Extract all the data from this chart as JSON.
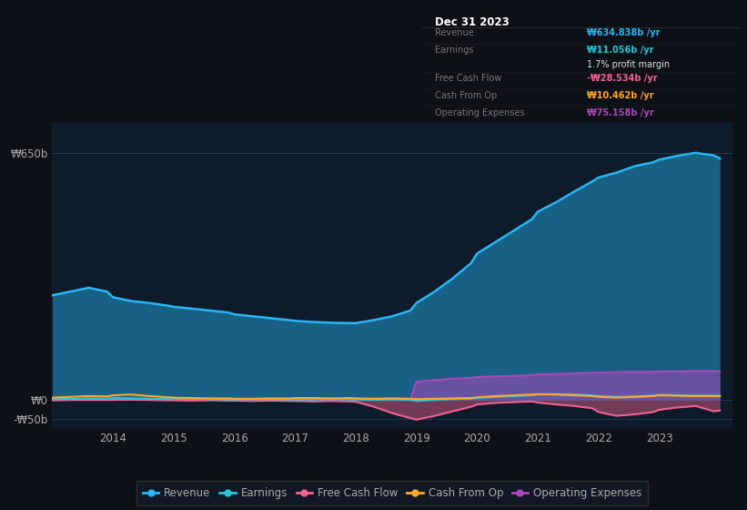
{
  "background_color": "#0d1117",
  "plot_bg_color": "#0d1b2a",
  "grid_color": "#263d5a",
  "text_color": "#aaaaaa",
  "title_color": "#ffffff",
  "years": [
    2013.0,
    2013.3,
    2013.6,
    2013.9,
    2014.0,
    2014.3,
    2014.6,
    2014.9,
    2015.0,
    2015.3,
    2015.6,
    2015.9,
    2016.0,
    2016.3,
    2016.6,
    2016.9,
    2017.0,
    2017.3,
    2017.6,
    2017.9,
    2018.0,
    2018.3,
    2018.6,
    2018.9,
    2019.0,
    2019.3,
    2019.6,
    2019.9,
    2020.0,
    2020.3,
    2020.6,
    2020.9,
    2021.0,
    2021.3,
    2021.6,
    2021.9,
    2022.0,
    2022.3,
    2022.6,
    2022.9,
    2023.0,
    2023.3,
    2023.6,
    2023.9,
    2024.0
  ],
  "revenue": [
    275,
    285,
    295,
    285,
    270,
    260,
    255,
    248,
    245,
    240,
    235,
    230,
    225,
    220,
    215,
    210,
    208,
    205,
    203,
    202,
    202,
    210,
    220,
    235,
    255,
    285,
    320,
    360,
    385,
    415,
    445,
    475,
    495,
    520,
    548,
    575,
    585,
    598,
    615,
    625,
    632,
    642,
    650,
    643,
    635
  ],
  "earnings": [
    2,
    3,
    4,
    3,
    5,
    4,
    3,
    2,
    3,
    3,
    2,
    1,
    1,
    2,
    2,
    1,
    1,
    1,
    2,
    1,
    1,
    0,
    1,
    0,
    -3,
    0,
    2,
    3,
    5,
    8,
    10,
    12,
    14,
    15,
    14,
    12,
    10,
    8,
    9,
    11,
    13,
    12,
    11,
    11,
    11
  ],
  "free_cash_flow": [
    -1,
    0,
    0,
    0,
    0,
    1,
    0,
    -1,
    -1,
    -2,
    -1,
    -2,
    -2,
    -3,
    -2,
    -3,
    -3,
    -4,
    -3,
    -4,
    -5,
    -18,
    -35,
    -48,
    -52,
    -42,
    -30,
    -18,
    -12,
    -8,
    -6,
    -4,
    -7,
    -12,
    -16,
    -22,
    -32,
    -42,
    -38,
    -32,
    -26,
    -20,
    -16,
    -30,
    -28
  ],
  "cash_from_op": [
    6,
    8,
    10,
    9,
    12,
    14,
    10,
    7,
    6,
    5,
    4,
    4,
    3,
    3,
    4,
    4,
    5,
    5,
    4,
    5,
    4,
    3,
    4,
    3,
    2,
    3,
    4,
    5,
    7,
    10,
    12,
    14,
    15,
    14,
    12,
    10,
    8,
    6,
    8,
    10,
    12,
    11,
    10,
    10,
    10
  ],
  "operating_expenses": [
    0,
    0,
    0,
    0,
    0,
    0,
    0,
    0,
    0,
    0,
    0,
    0,
    0,
    0,
    0,
    0,
    0,
    0,
    0,
    0,
    0,
    0,
    0,
    0,
    48,
    52,
    56,
    58,
    60,
    62,
    63,
    65,
    67,
    68,
    70,
    71,
    72,
    73,
    74,
    74,
    75,
    75,
    76,
    76,
    75
  ],
  "ylim": [
    -75,
    730
  ],
  "y_ticks": [
    -50,
    0,
    650
  ],
  "y_tick_labels": [
    "-₩50b",
    "₩0",
    "₩650b"
  ],
  "x_ticks": [
    2013,
    2014,
    2015,
    2016,
    2017,
    2018,
    2019,
    2020,
    2021,
    2022,
    2023
  ],
  "x_tick_labels": [
    "",
    "2014",
    "2015",
    "2016",
    "2017",
    "2018",
    "2019",
    "2020",
    "2021",
    "2022",
    "2023"
  ],
  "xlim": [
    2013.0,
    2024.2
  ],
  "revenue_color": "#29b6f6",
  "earnings_color": "#26c6da",
  "free_cash_flow_color": "#f06292",
  "cash_from_op_color": "#ffa726",
  "operating_expenses_color": "#ab47bc",
  "tooltip_title": "Dec 31 2023",
  "tooltip_items": [
    {
      "label": "Revenue",
      "value": "₩634.838b /yr",
      "color": "#29b6f6"
    },
    {
      "label": "Earnings",
      "value": "₩11.056b /yr",
      "color": "#26c6da"
    },
    {
      "label": "",
      "value": "1.7% profit margin",
      "color": "#dddddd"
    },
    {
      "label": "Free Cash Flow",
      "value": "-₩28.534b /yr",
      "color": "#f06292"
    },
    {
      "label": "Cash From Op",
      "value": "₩10.462b /yr",
      "color": "#ffa726"
    },
    {
      "label": "Operating Expenses",
      "value": "₩75.158b /yr",
      "color": "#ab47bc"
    }
  ],
  "legend_items": [
    {
      "label": "Revenue",
      "color": "#29b6f6"
    },
    {
      "label": "Earnings",
      "color": "#26c6da"
    },
    {
      "label": "Free Cash Flow",
      "color": "#f06292"
    },
    {
      "label": "Cash From Op",
      "color": "#ffa726"
    },
    {
      "label": "Operating Expenses",
      "color": "#ab47bc"
    }
  ]
}
